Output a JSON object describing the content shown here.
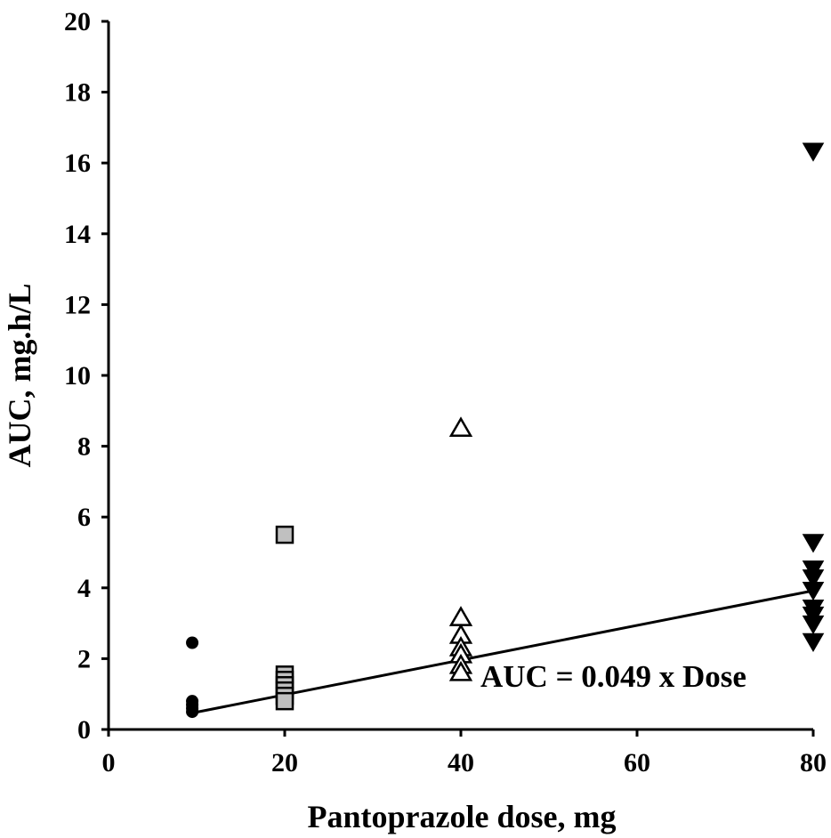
{
  "chart_data": {
    "type": "scatter",
    "title": "",
    "xlabel": "Pantoprazole dose, mg",
    "ylabel": "AUC, mg.h/L",
    "xlim": [
      0,
      80
    ],
    "ylim": [
      0,
      20
    ],
    "xticks": [
      0,
      20,
      40,
      60,
      80
    ],
    "yticks": [
      0,
      2,
      4,
      6,
      8,
      10,
      12,
      14,
      16,
      18,
      20
    ],
    "grid": false,
    "series": [
      {
        "marker": "filled-circle",
        "color": "#000000",
        "points": [
          [
            9.5,
            2.45
          ],
          [
            9.5,
            0.8
          ],
          [
            9.5,
            0.7
          ],
          [
            9.5,
            0.6
          ],
          [
            9.5,
            0.5
          ]
        ]
      },
      {
        "marker": "gray-square",
        "color": "#c0c0c0",
        "points": [
          [
            20,
            5.5
          ],
          [
            20,
            1.55
          ],
          [
            20,
            1.4
          ],
          [
            20,
            1.25
          ],
          [
            20,
            1.1
          ],
          [
            20,
            0.95
          ],
          [
            20,
            0.8
          ]
        ]
      },
      {
        "marker": "open-triangle-up",
        "color": "#ffffff",
        "points": [
          [
            40,
            8.5
          ],
          [
            40,
            3.15
          ],
          [
            40,
            2.65
          ],
          [
            40,
            2.3
          ],
          [
            40,
            2.1
          ],
          [
            40,
            1.8
          ],
          [
            40,
            1.6
          ]
        ]
      },
      {
        "marker": "filled-triangle-down",
        "color": "#000000",
        "points": [
          [
            80,
            16.35
          ],
          [
            80,
            5.3
          ],
          [
            80,
            4.55
          ],
          [
            80,
            4.3
          ],
          [
            80,
            3.95
          ],
          [
            80,
            3.45
          ],
          [
            80,
            3.25
          ],
          [
            80,
            3.0
          ],
          [
            80,
            2.5
          ]
        ]
      }
    ],
    "fit_line": {
      "slope": 0.049,
      "x_range": [
        9.5,
        80
      ],
      "label": "AUC = 0.049 x Dose"
    }
  }
}
